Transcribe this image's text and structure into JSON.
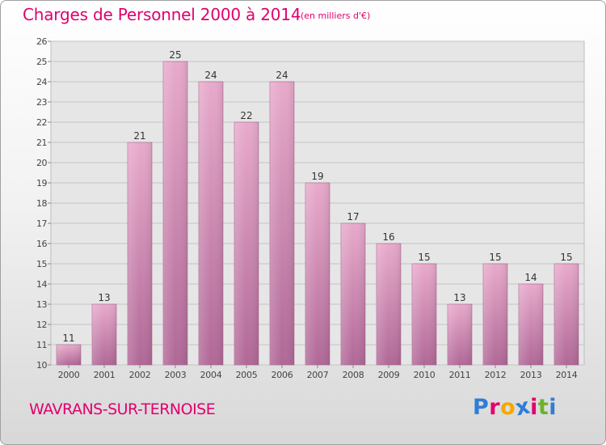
{
  "header": {
    "title": "Charges de Personnel 2000 à 2014",
    "subtitle": "(en milliers d'€)"
  },
  "footer": {
    "town": "WAVRANS-SUR-TERNOISE",
    "logo_text": "Proxiti",
    "logo_colors": [
      "#2e7dd7",
      "#e0006e",
      "#f4a800",
      "#2e7dd7",
      "#e0006e",
      "#6ab42d",
      "#2e7dd7"
    ]
  },
  "chart_data": {
    "type": "bar",
    "categories": [
      "2000",
      "2001",
      "2002",
      "2003",
      "2004",
      "2005",
      "2006",
      "2007",
      "2008",
      "2009",
      "2010",
      "2011",
      "2012",
      "2013",
      "2014"
    ],
    "values": [
      11,
      13,
      21,
      25,
      24,
      22,
      24,
      19,
      17,
      16,
      15,
      13,
      15,
      14,
      15
    ],
    "title": "Charges de Personnel 2000 à 2014",
    "subtitle": "(en milliers d'€)",
    "ylim": [
      10,
      26
    ],
    "yticks": [
      10,
      11,
      12,
      13,
      14,
      15,
      16,
      17,
      18,
      19,
      20,
      21,
      22,
      23,
      24,
      25,
      26
    ],
    "grid": true,
    "data_labels": true,
    "colors": {
      "bar": "#cc88b0",
      "bar_light": "#e8aacb",
      "bar_dark": "#b06897",
      "text": "#e0006e"
    }
  }
}
